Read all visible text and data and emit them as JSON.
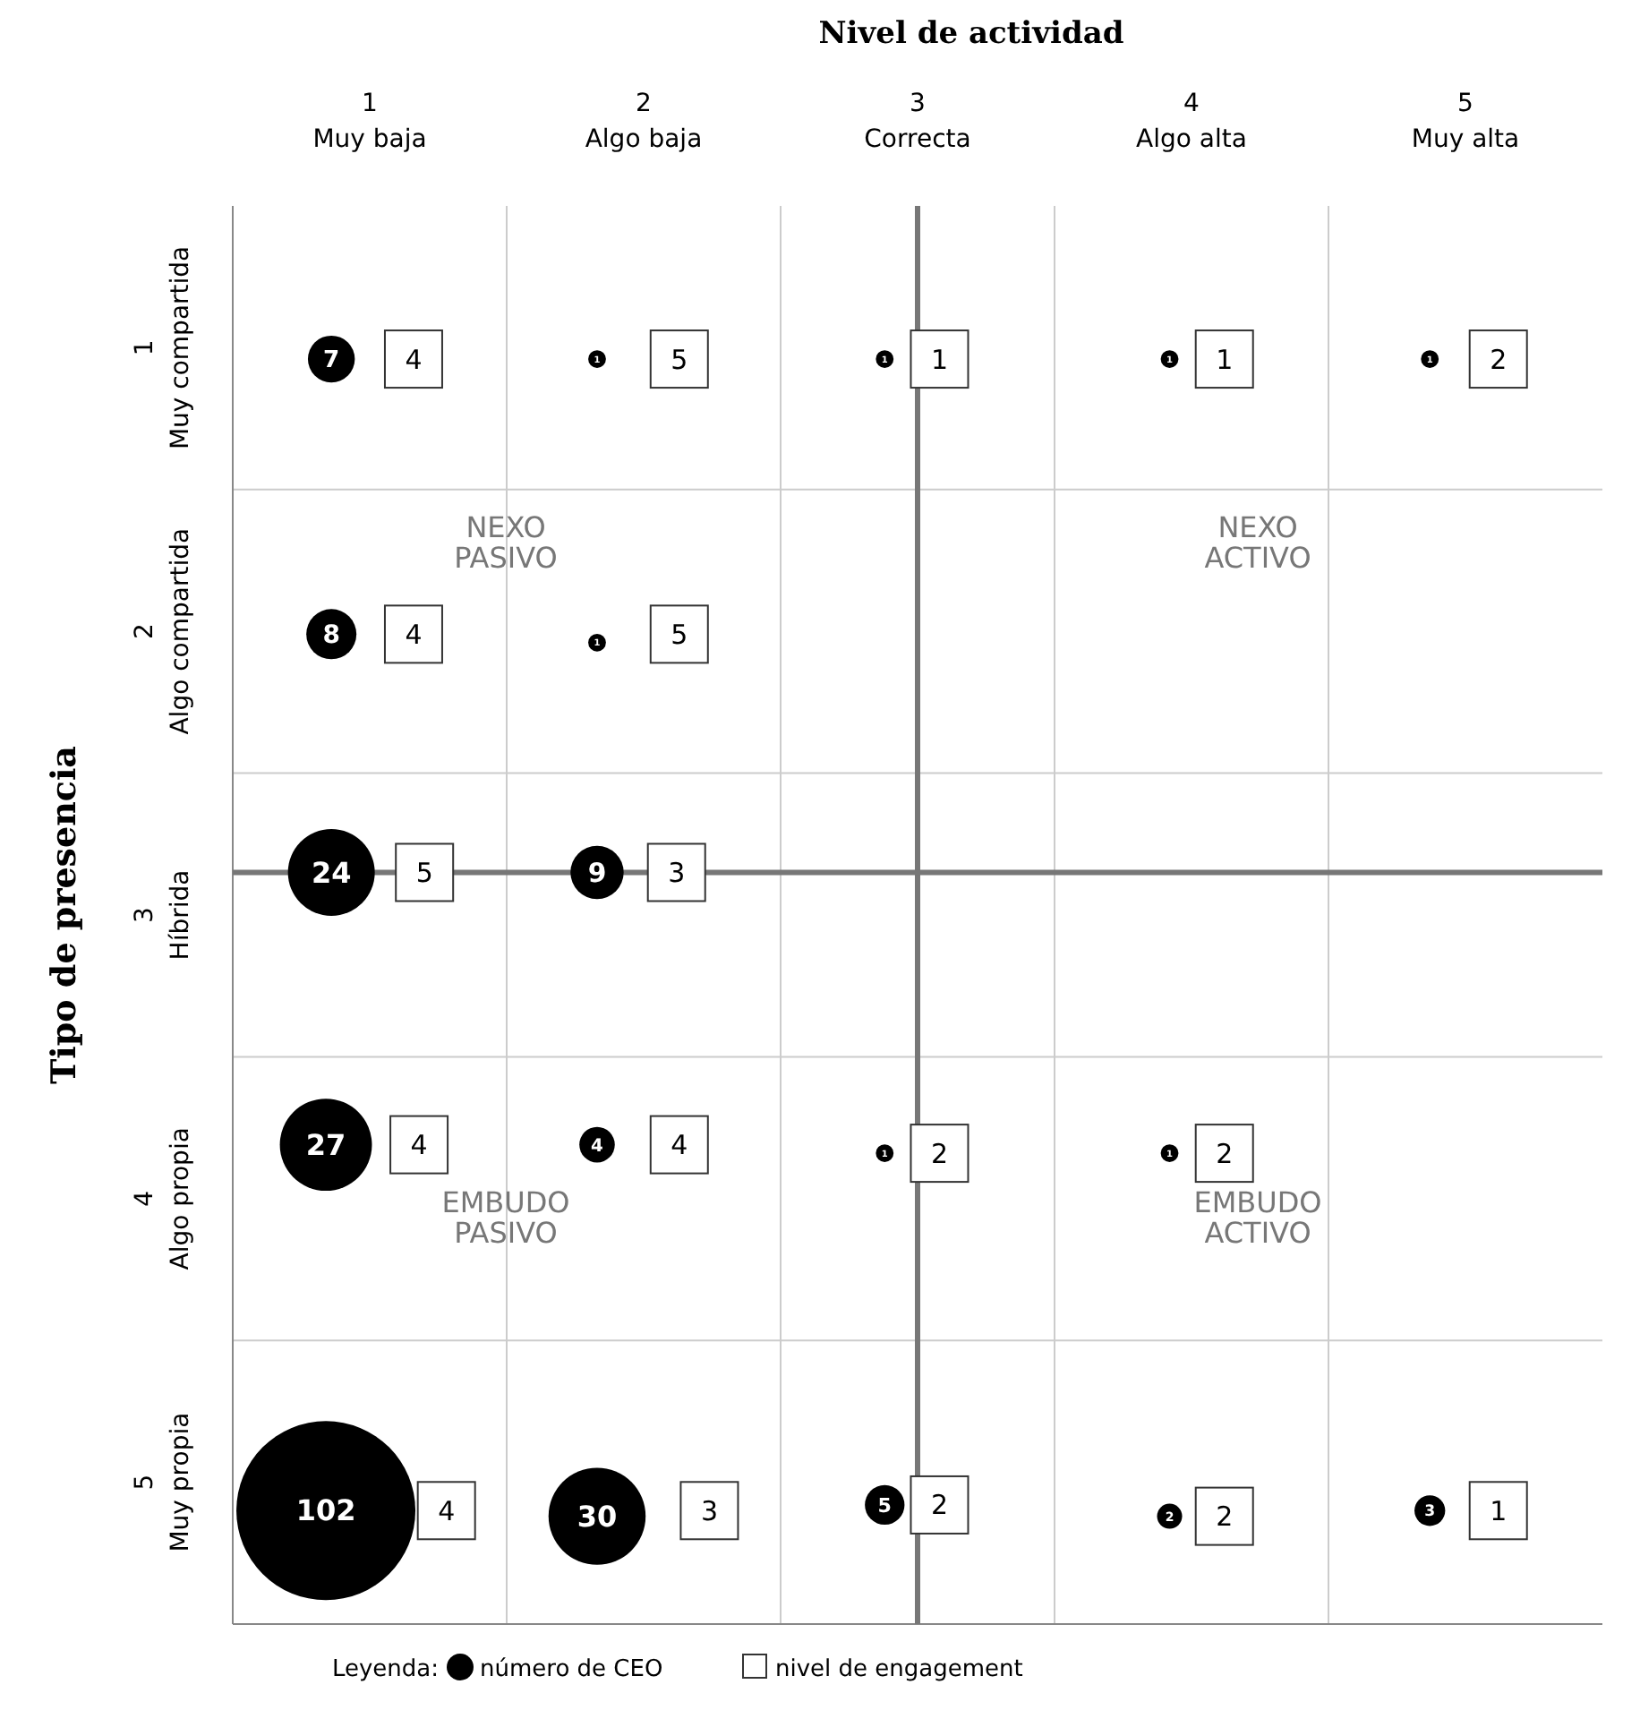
{
  "chart_data": {
    "type": "bubble",
    "xlabel": "Nivel de actividad",
    "ylabel": "Tipo de presencia",
    "xlim": [
      0.5,
      5.5
    ],
    "ylim": [
      5.5,
      0.5
    ],
    "xticks": [
      {
        "value": 1,
        "label": "1\nMuy baja"
      },
      {
        "value": 1.5,
        "label": null
      },
      {
        "value": 2,
        "label": "2\nAlgo baja"
      },
      {
        "value": 2.5,
        "label": null
      },
      {
        "value": 3,
        "label": "3\nCorrecta"
      },
      {
        "value": 3.5,
        "label": null
      },
      {
        "value": 4,
        "label": "4\nAlgo alta"
      },
      {
        "value": 4.5,
        "label": null
      },
      {
        "value": 5,
        "label": "5\nMuy alta"
      }
    ],
    "yticks": [
      {
        "value": 1,
        "label": "1\nMuy compartida"
      },
      {
        "value": 1.5,
        "label": null
      },
      {
        "value": 2,
        "label": "2\nAlgo compartida"
      },
      {
        "value": 2.5,
        "label": null
      },
      {
        "value": 3,
        "label": "3\nHíbrida"
      },
      {
        "value": 3.5,
        "label": null
      },
      {
        "value": 4,
        "label": "4\nAlgo propia"
      },
      {
        "value": 4.5,
        "label": null
      },
      {
        "value": 5,
        "label": "5\nMuy propia"
      }
    ],
    "grid": true,
    "legend": "bottom",
    "legend_title": "Leyenda:",
    "ref_lines": [
      {
        "axis": "x",
        "value": 3,
        "label": null,
        "color": "#777777"
      },
      {
        "axis": "y",
        "value": 2.85,
        "label": null,
        "color": "#777777"
      }
    ],
    "annotations": [
      "NEXO\nPASIVO",
      "NEXO\nACTIVO",
      "EMBUDO\nPASIVO",
      "EMBUDO\nACTIVO",
      {
        "text": "4",
        "x": 1.16,
        "y": 1.04
      },
      {
        "text": "5",
        "x": 2.13,
        "y": 1.04
      },
      {
        "text": "1",
        "x": 3.08,
        "y": 1.04
      },
      {
        "text": "1",
        "x": 4.12,
        "y": 1.04
      },
      {
        "text": "2",
        "x": 5.12,
        "y": 1.04
      },
      {
        "text": "4",
        "x": 1.16,
        "y": 2.01
      },
      {
        "text": "5",
        "x": 2.13,
        "y": 2.01
      },
      {
        "text": "5",
        "x": 1.2,
        "y": 2.85
      },
      {
        "text": "3",
        "x": 2.12,
        "y": 2.85
      },
      {
        "text": "4",
        "x": 1.18,
        "y": 3.81
      },
      {
        "text": "4",
        "x": 2.13,
        "y": 3.81
      },
      {
        "text": "2",
        "x": 3.08,
        "y": 3.84
      },
      {
        "text": "2",
        "x": 4.12,
        "y": 3.84
      },
      {
        "text": "4",
        "x": 1.28,
        "y": 5.1
      },
      {
        "text": "3",
        "x": 2.24,
        "y": 5.1
      },
      {
        "text": "2",
        "x": 3.08,
        "y": 5.08
      },
      {
        "text": "2",
        "x": 4.12,
        "y": 5.12
      },
      {
        "text": "1",
        "x": 5.12,
        "y": 5.1
      }
    ],
    "series": [
      {
        "name": "número de CEO",
        "marker": "circle",
        "color": "#000000",
        "x": [
          0.86,
          1.83,
          2.88,
          3.92,
          4.87,
          0.86,
          1.83,
          0.86,
          1.83,
          0.84,
          1.83,
          2.88,
          3.92,
          0.84,
          1.83,
          2.88,
          3.92,
          4.87
        ],
        "values": [
          1.04,
          1.04,
          1.04,
          1.04,
          1.04,
          2.01,
          2.04,
          2.85,
          2.85,
          3.81,
          3.81,
          3.84,
          3.84,
          5.1,
          5.12,
          5.08,
          5.12,
          5.1
        ],
        "sizes": [
          7,
          1,
          1,
          1,
          1,
          8,
          1,
          24,
          9,
          27,
          4,
          1,
          1,
          102,
          30,
          5,
          2,
          3
        ],
        "value_labels": [
          "7",
          "1",
          "1",
          "1",
          "1",
          "8",
          "1",
          "24",
          "9",
          "27",
          "4",
          "1",
          "1",
          "102",
          "30",
          "5",
          "2",
          "3"
        ]
      },
      {
        "name": "nivel de engagement",
        "type": "scatter",
        "marker": "square",
        "color": "#ffffff",
        "x": [
          1.16,
          2.13,
          3.08,
          4.12,
          5.12,
          1.16,
          2.13,
          1.2,
          2.12,
          1.18,
          2.13,
          3.08,
          4.12,
          1.28,
          2.24,
          3.08,
          4.12,
          5.12
        ],
        "values": [
          1.04,
          1.04,
          1.04,
          1.04,
          1.04,
          2.01,
          2.01,
          2.85,
          2.85,
          3.81,
          3.81,
          3.84,
          3.84,
          5.1,
          5.1,
          5.08,
          5.12,
          5.1
        ]
      }
    ]
  }
}
